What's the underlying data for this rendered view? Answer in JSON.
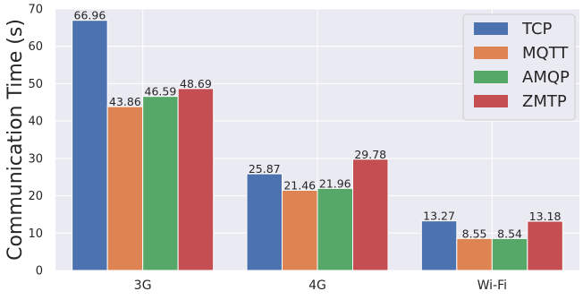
{
  "chart_data": {
    "type": "bar",
    "title": "",
    "xlabel": "",
    "ylabel": "Communication Time (s)",
    "ylim": [
      0,
      70
    ],
    "yticks": [
      0,
      10,
      20,
      30,
      40,
      50,
      60,
      70
    ],
    "categories": [
      "3G",
      "4G",
      "Wi-Fi"
    ],
    "series": [
      {
        "name": "TCP",
        "color": "#4c72b0",
        "values": [
          66.96,
          25.87,
          13.27
        ]
      },
      {
        "name": "MQTT",
        "color": "#dd8452",
        "values": [
          43.86,
          21.46,
          8.55
        ]
      },
      {
        "name": "AMQP",
        "color": "#55a868",
        "values": [
          46.59,
          21.96,
          8.54
        ]
      },
      {
        "name": "ZMTP",
        "color": "#c44e52",
        "values": [
          48.69,
          29.78,
          13.18
        ]
      }
    ],
    "grid": true,
    "legend_position": "top-right",
    "background": "#eaeaf2",
    "grid_color": "#ffffff"
  }
}
